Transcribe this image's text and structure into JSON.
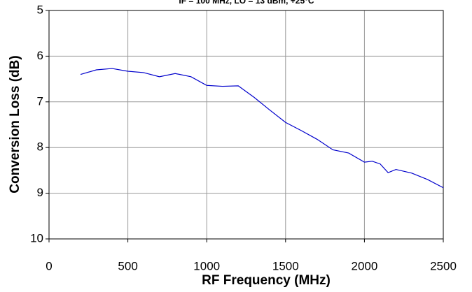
{
  "chart_data": {
    "type": "line",
    "title": "IF = 100 MHz, LO = 13 dBm, +25°C",
    "x_label": "RF Frequency (MHz)",
    "y_label": "Conversion Loss (dB)",
    "x": [
      200,
      300,
      400,
      500,
      600,
      700,
      800,
      900,
      1000,
      1100,
      1200,
      1300,
      1400,
      1500,
      1600,
      1700,
      1800,
      1900,
      2000,
      2050,
      2100,
      2150,
      2200,
      2300,
      2400,
      2500
    ],
    "series": [
      {
        "name": "Conversion Loss",
        "color": "#0000cc",
        "values": [
          6.4,
          6.3,
          6.27,
          6.33,
          6.36,
          6.45,
          6.38,
          6.45,
          6.64,
          6.66,
          6.65,
          6.9,
          7.18,
          7.45,
          7.63,
          7.82,
          8.05,
          8.12,
          8.32,
          8.3,
          8.36,
          8.55,
          8.48,
          8.56,
          8.7,
          8.88
        ]
      }
    ],
    "xlim": [
      0,
      2500
    ],
    "xticks": [
      0,
      500,
      1000,
      1500,
      2000,
      2500
    ],
    "ylim": [
      10,
      5
    ],
    "yticks": [
      5,
      6,
      7,
      8,
      9,
      10
    ],
    "grid": true
  }
}
